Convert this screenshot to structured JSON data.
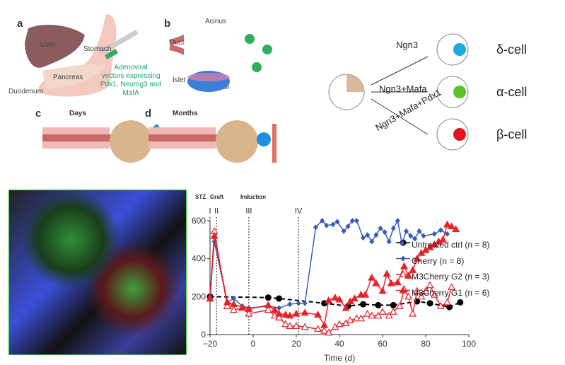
{
  "panel_a": {
    "label": "a",
    "liver": "Liver",
    "stomach": "Stomach",
    "pancreas": "Pancreas",
    "duodenum": "Duodenum",
    "vector": [
      "Adenoviral",
      "vectors expressing",
      "Pdx1, Neurog3 and MafA"
    ]
  },
  "panel_b": {
    "label": "b",
    "duct": "Duct",
    "acinus": "Acinus",
    "islet": "Islet",
    "beta": "β-cell"
  },
  "panel_c": {
    "label": "c",
    "title": "Days"
  },
  "panel_d": {
    "label": "d",
    "title": "Months"
  },
  "reprogramming": {
    "arrows": [
      "Ngn3",
      "Ngn3+Mafa",
      "Ngn3+Mafa+Pdx1"
    ],
    "cells": [
      "δ-cell",
      "α-cell",
      "β-cell"
    ],
    "colors": [
      "#1ba9e0",
      "#5cc22a",
      "#e3161b"
    ]
  },
  "micrograph": {
    "description_colors": [
      "#3a4fd8",
      "#3fbf3a",
      "#c01a1a"
    ]
  },
  "chart_data": {
    "type": "line",
    "xlabel": "Time (d)",
    "ylabel": "",
    "xlim": [
      -20,
      100
    ],
    "ylim": [
      0,
      600
    ],
    "xticks": [
      -20,
      0,
      20,
      40,
      60,
      80,
      100
    ],
    "yticks": [
      0,
      200,
      400,
      600
    ],
    "events": [
      {
        "roman": "I",
        "label": "STZ",
        "x": -20
      },
      {
        "roman": "II",
        "label": "Graft",
        "x": -17
      },
      {
        "roman": "III",
        "label": "Induction",
        "x": -2
      },
      {
        "roman": "IV",
        "label": "",
        "x": 21
      }
    ],
    "legend_position": "right",
    "series": [
      {
        "name": "Untreated ctrl (n = 8)",
        "color": "#000000",
        "marker": "circle",
        "dashed": true,
        "x": [
          -20,
          7,
          12,
          33,
          44,
          51,
          58,
          65,
          76,
          82,
          91,
          96
        ],
        "y": [
          200,
          195,
          190,
          165,
          150,
          160,
          155,
          155,
          175,
          165,
          145,
          170
        ]
      },
      {
        "name": "Cherry (n = 8)",
        "color": "#3a5bb8",
        "marker": "diamond",
        "dashed": false,
        "x": [
          -20,
          -18,
          -12,
          -9,
          -5,
          -2,
          7,
          12,
          17,
          21,
          24,
          29,
          32,
          34,
          37,
          39,
          42,
          44,
          46,
          48,
          51,
          53,
          55,
          57,
          59,
          61,
          63,
          65,
          67,
          69,
          71,
          73,
          75,
          77,
          79,
          84,
          87,
          90
        ],
        "y": [
          200,
          490,
          170,
          190,
          150,
          140,
          150,
          140,
          160,
          165,
          165,
          565,
          600,
          575,
          580,
          595,
          545,
          570,
          600,
          600,
          510,
          525,
          490,
          525,
          560,
          540,
          490,
          560,
          600,
          480,
          545,
          520,
          505,
          545,
          520,
          530,
          550,
          530
        ]
      },
      {
        "name": "M3Cherry G2 (n = 3)",
        "color": "#e8222a",
        "marker": "triangle-open",
        "dashed": false,
        "x": [
          -20,
          -18,
          -12,
          -9,
          -5,
          -2,
          7,
          10,
          12,
          15,
          17,
          20,
          24,
          30,
          33,
          35,
          38,
          40,
          43,
          45,
          48,
          50,
          53,
          55,
          58,
          60,
          63,
          65,
          68,
          70,
          72,
          74,
          76,
          78,
          80,
          82,
          84,
          87,
          90,
          92
        ],
        "y": [
          190,
          545,
          150,
          130,
          140,
          110,
          130,
          100,
          90,
          55,
          45,
          45,
          40,
          30,
          20,
          10,
          40,
          55,
          60,
          75,
          85,
          85,
          110,
          100,
          100,
          120,
          100,
          120,
          150,
          240,
          200,
          110,
          230,
          200,
          230,
          260,
          210,
          150,
          170,
          250
        ]
      },
      {
        "name": "M3Cherry G1 (n = 6)",
        "color": "#e8222a",
        "marker": "triangle",
        "dashed": false,
        "x": [
          -20,
          -18,
          -12,
          -9,
          -5,
          -2,
          7,
          10,
          12,
          15,
          17,
          20,
          24,
          30,
          33,
          35,
          38,
          40,
          43,
          45,
          47,
          50,
          52,
          55,
          57,
          60,
          62,
          64,
          67,
          70,
          72,
          74,
          76,
          78,
          80,
          82,
          84,
          86,
          88,
          90,
          92,
          94
        ],
        "y": [
          190,
          520,
          170,
          160,
          145,
          135,
          155,
          130,
          110,
          105,
          100,
          110,
          115,
          105,
          50,
          180,
          195,
          185,
          140,
          175,
          190,
          210,
          210,
          300,
          270,
          230,
          320,
          270,
          275,
          360,
          310,
          340,
          400,
          430,
          445,
          460,
          475,
          490,
          500,
          580,
          570,
          555
        ]
      }
    ]
  }
}
